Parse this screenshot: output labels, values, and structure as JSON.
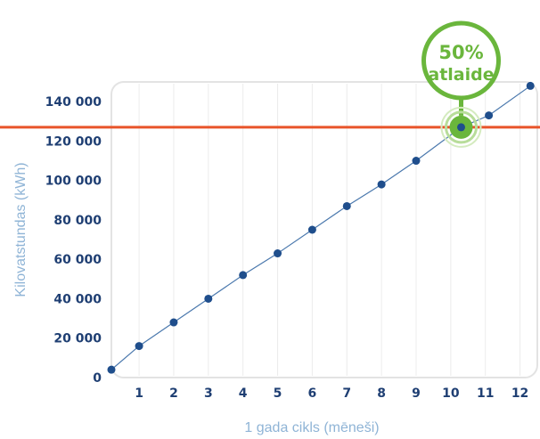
{
  "chart_data": {
    "type": "line",
    "xlabel": "1 gada cikls (mēneši)",
    "ylabel": "Kilovatstundas (kWh)",
    "x_ticks": [
      "1",
      "2",
      "3",
      "4",
      "5",
      "6",
      "7",
      "8",
      "9",
      "10",
      "11",
      "12"
    ],
    "y_ticks": [
      "0",
      "20 000",
      "40 000",
      "60 000",
      "80 000",
      "100 000",
      "120 000",
      "140 000"
    ],
    "xlim": [
      0.2,
      12.5
    ],
    "ylim": [
      0,
      150000
    ],
    "grid": true,
    "series": [
      {
        "x": [
          0.2,
          1,
          2,
          3,
          4,
          5,
          6,
          7,
          8,
          9,
          10.3,
          11.1,
          12.3
        ],
        "y": [
          4000,
          16000,
          28000,
          40000,
          52000,
          63000,
          75000,
          87000,
          98000,
          110000,
          127000,
          133000,
          148000
        ],
        "color": "#1f4e8c"
      }
    ],
    "threshold": {
      "y": 127000,
      "color": "#e8542a"
    },
    "highlight": {
      "x": 10.3,
      "y": 127000,
      "color": "#6ab63c"
    },
    "callout": {
      "value": "50%",
      "text": "atlaide"
    }
  }
}
